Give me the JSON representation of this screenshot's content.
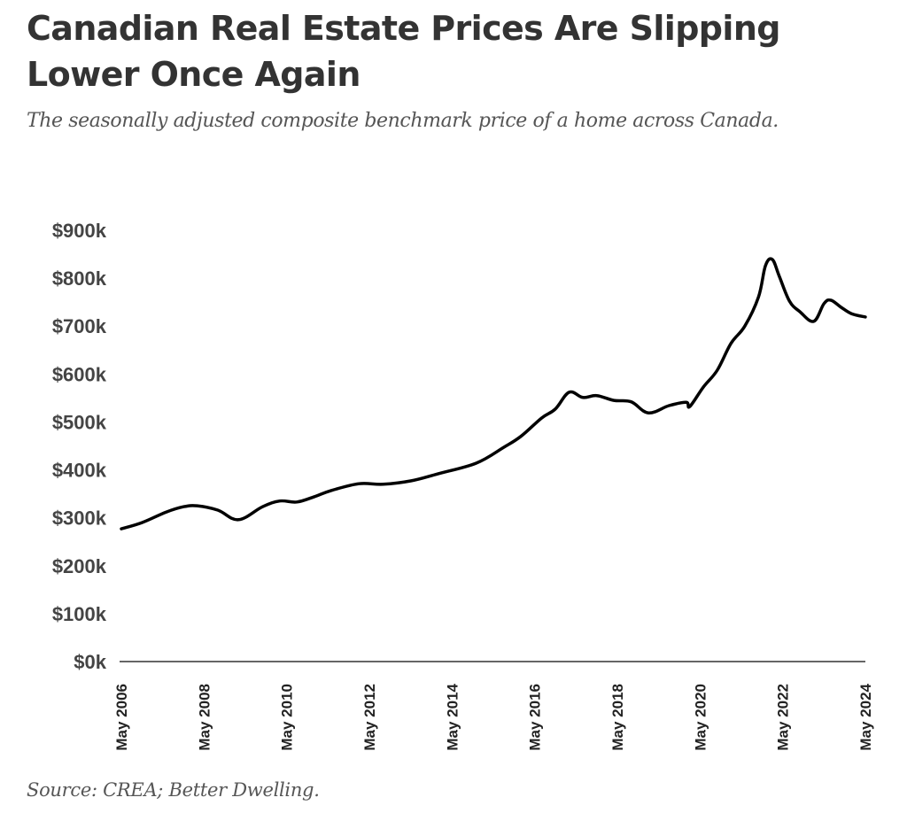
{
  "title": "Canadian Real Estate Prices Are Slipping Lower Once Again",
  "subtitle": "The seasonally adjusted composite benchmark price of a home across Canada.",
  "source": "Source: CREA; Better Dwelling.",
  "colors": {
    "line": "#000000",
    "axis": "#666666",
    "title": "#333333",
    "text": "#555555"
  },
  "chart_data": {
    "type": "line",
    "title": "Canadian Real Estate Prices Are Slipping Lower Once Again",
    "subtitle": "The seasonally adjusted composite benchmark price of a home across Canada.",
    "xlabel": "",
    "ylabel": "",
    "x_range": [
      "2006-05",
      "2024-05"
    ],
    "ylim": [
      0,
      900000
    ],
    "grid": false,
    "legend": "none",
    "y_ticks": [
      {
        "value": 0,
        "label": "$0k"
      },
      {
        "value": 100000,
        "label": "$100k"
      },
      {
        "value": 200000,
        "label": "$200k"
      },
      {
        "value": 300000,
        "label": "$300k"
      },
      {
        "value": 400000,
        "label": "$400k"
      },
      {
        "value": 500000,
        "label": "$500k"
      },
      {
        "value": 600000,
        "label": "$600k"
      },
      {
        "value": 700000,
        "label": "$700k"
      },
      {
        "value": 800000,
        "label": "$800k"
      },
      {
        "value": 900000,
        "label": "$900k"
      }
    ],
    "x_ticks": [
      {
        "value": "2006-05",
        "label": "May 2006"
      },
      {
        "value": "2008-05",
        "label": "May 2008"
      },
      {
        "value": "2010-05",
        "label": "May 2010"
      },
      {
        "value": "2012-05",
        "label": "May 2012"
      },
      {
        "value": "2014-05",
        "label": "May 2014"
      },
      {
        "value": "2016-05",
        "label": "May 2016"
      },
      {
        "value": "2018-05",
        "label": "May 2018"
      },
      {
        "value": "2020-05",
        "label": "May 2020"
      },
      {
        "value": "2022-05",
        "label": "May 2022"
      },
      {
        "value": "2024-05",
        "label": "May 2024"
      }
    ],
    "series": [
      {
        "name": "Composite benchmark price (SA)",
        "points": [
          {
            "x": "2006-05",
            "y": 277000
          },
          {
            "x": "2006-11",
            "y": 290000
          },
          {
            "x": "2007-06",
            "y": 312000
          },
          {
            "x": "2007-11",
            "y": 323000
          },
          {
            "x": "2008-03",
            "y": 325000
          },
          {
            "x": "2008-09",
            "y": 316000
          },
          {
            "x": "2009-03",
            "y": 296000
          },
          {
            "x": "2009-10",
            "y": 323000
          },
          {
            "x": "2010-03",
            "y": 335000
          },
          {
            "x": "2010-08",
            "y": 333000
          },
          {
            "x": "2011-01",
            "y": 344000
          },
          {
            "x": "2011-06",
            "y": 357000
          },
          {
            "x": "2012-02",
            "y": 371000
          },
          {
            "x": "2012-09",
            "y": 370000
          },
          {
            "x": "2013-05",
            "y": 377000
          },
          {
            "x": "2014-01",
            "y": 392000
          },
          {
            "x": "2014-12",
            "y": 414000
          },
          {
            "x": "2015-08",
            "y": 447000
          },
          {
            "x": "2016-01",
            "y": 470000
          },
          {
            "x": "2016-07",
            "y": 508000
          },
          {
            "x": "2016-11",
            "y": 527000
          },
          {
            "x": "2017-03",
            "y": 562000
          },
          {
            "x": "2017-07",
            "y": 551000
          },
          {
            "x": "2017-11",
            "y": 555000
          },
          {
            "x": "2018-04",
            "y": 545000
          },
          {
            "x": "2018-09",
            "y": 542000
          },
          {
            "x": "2019-02",
            "y": 519000
          },
          {
            "x": "2019-08",
            "y": 534000
          },
          {
            "x": "2020-01",
            "y": 541000
          },
          {
            "x": "2020-02",
            "y": 532000
          },
          {
            "x": "2020-06",
            "y": 573000
          },
          {
            "x": "2020-10",
            "y": 608000
          },
          {
            "x": "2021-02",
            "y": 664000
          },
          {
            "x": "2021-06",
            "y": 700000
          },
          {
            "x": "2021-10",
            "y": 761000
          },
          {
            "x": "2021-12",
            "y": 826000
          },
          {
            "x": "2022-02",
            "y": 839000
          },
          {
            "x": "2022-04",
            "y": 804000
          },
          {
            "x": "2022-07",
            "y": 752000
          },
          {
            "x": "2022-10",
            "y": 730000
          },
          {
            "x": "2023-02",
            "y": 710000
          },
          {
            "x": "2023-05",
            "y": 747000
          },
          {
            "x": "2023-07",
            "y": 754000
          },
          {
            "x": "2023-10",
            "y": 739000
          },
          {
            "x": "2024-01",
            "y": 726000
          },
          {
            "x": "2024-05",
            "y": 719000
          }
        ]
      }
    ]
  }
}
